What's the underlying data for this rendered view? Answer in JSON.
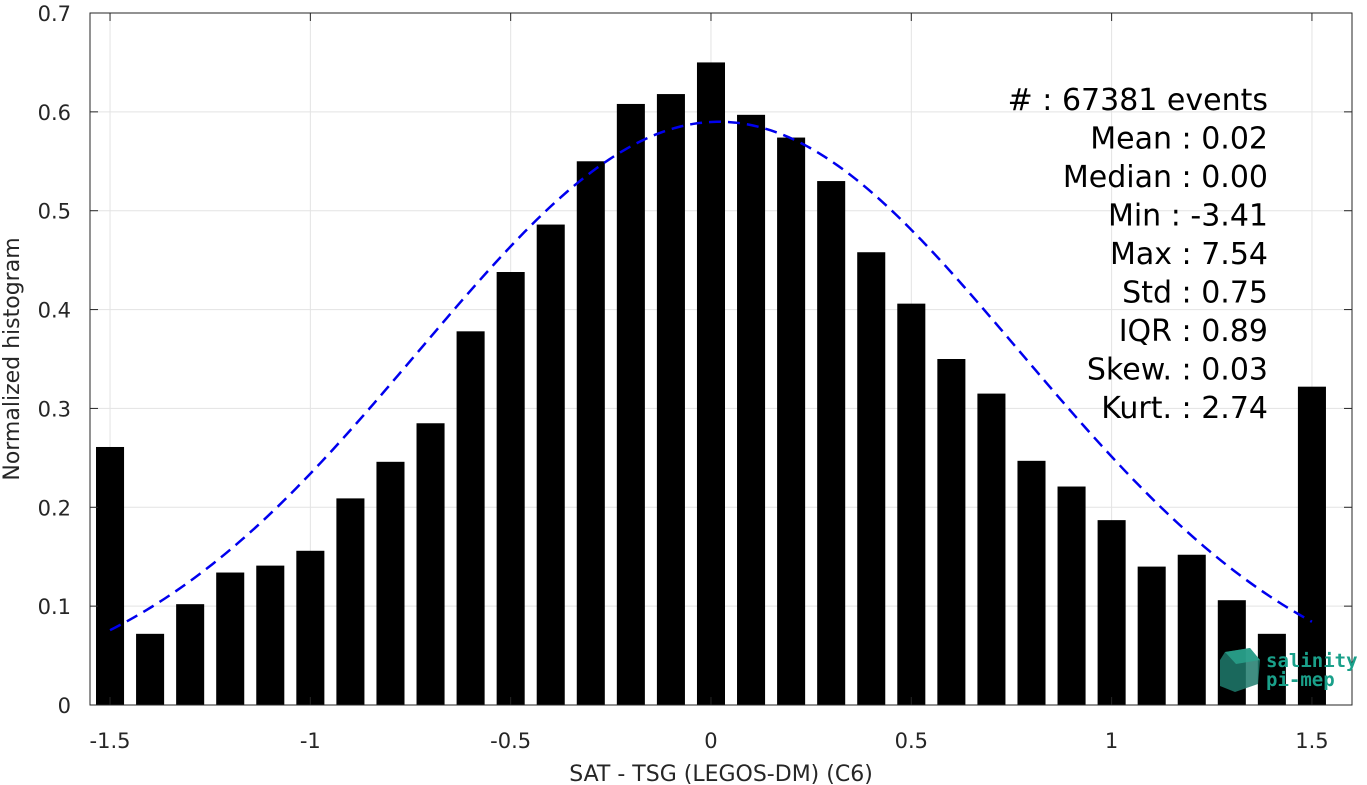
{
  "chart_data": {
    "type": "bar",
    "xlabel": "SAT - TSG (LEGOS-DM) (C6)",
    "ylabel": "Normalized histogram",
    "xlim": [
      -1.55,
      1.6
    ],
    "ylim": [
      0,
      0.7
    ],
    "xticks": [
      -1.5,
      -1,
      -0.5,
      0,
      0.5,
      1,
      1.5
    ],
    "xtick_labels": [
      "-1.5",
      "-1",
      "-0.5",
      "0",
      "0.5",
      "1",
      "1.5"
    ],
    "yticks": [
      0,
      0.1,
      0.2,
      0.3,
      0.4,
      0.5,
      0.6,
      0.7
    ],
    "ytick_labels": [
      "0",
      "0.1",
      "0.2",
      "0.3",
      "0.4",
      "0.5",
      "0.6",
      "0.7"
    ],
    "grid": true,
    "bar_color": "#000000",
    "bars": {
      "x": [
        -1.5,
        -1.4,
        -1.3,
        -1.2,
        -1.1,
        -1.0,
        -0.9,
        -0.8,
        -0.7,
        -0.6,
        -0.5,
        -0.4,
        -0.3,
        -0.2,
        -0.1,
        0.0,
        0.1,
        0.2,
        0.3,
        0.4,
        0.5,
        0.6,
        0.7,
        0.8,
        0.9,
        1.0,
        1.1,
        1.2,
        1.3,
        1.4,
        1.5
      ],
      "values": [
        0.261,
        0.072,
        0.102,
        0.134,
        0.141,
        0.156,
        0.209,
        0.246,
        0.285,
        0.378,
        0.438,
        0.486,
        0.55,
        0.608,
        0.618,
        0.65,
        0.597,
        0.574,
        0.53,
        0.458,
        0.406,
        0.35,
        0.315,
        0.247,
        0.221,
        0.187,
        0.14,
        0.152,
        0.106,
        0.072,
        0.322
      ]
    },
    "fit": {
      "style": "dashed",
      "color": "#0000ee",
      "mean": 0.02,
      "std": 0.75,
      "peak": 0.59,
      "x_range": [
        -1.5,
        1.5
      ]
    },
    "stats": [
      {
        "label": "#  : 67381 events"
      },
      {
        "label": "Mean : 0.02"
      },
      {
        "label": "Median : 0.00"
      },
      {
        "label": "Min : -3.41"
      },
      {
        "label": "Max : 7.54"
      },
      {
        "label": "Std : 0.75"
      },
      {
        "label": "IQR : 0.89"
      },
      {
        "label": "Skew. : 0.03"
      },
      {
        "label": "Kurt. : 2.74"
      }
    ]
  },
  "logo": {
    "line1": "salinity",
    "line2": "pi-mep",
    "color": "#1aa08a"
  }
}
